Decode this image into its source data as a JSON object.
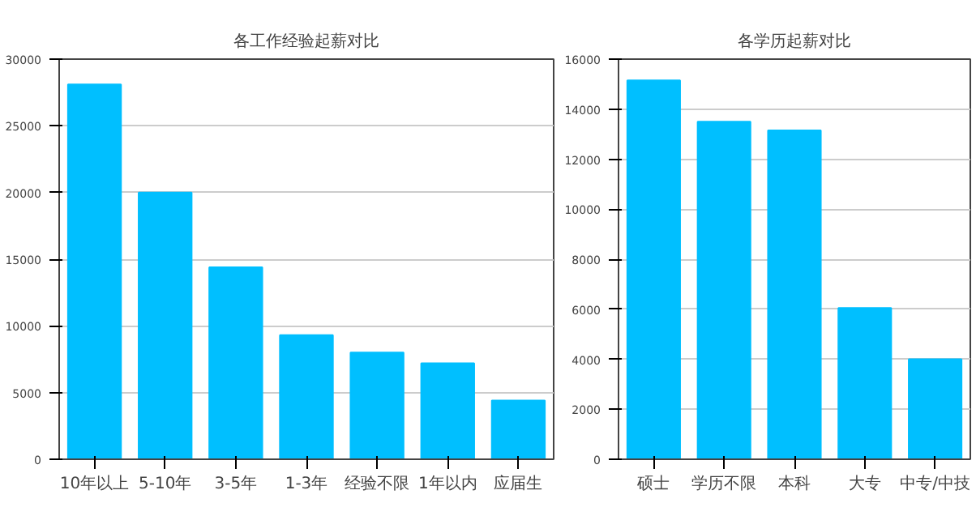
{
  "chart_data": [
    {
      "type": "bar",
      "title": "各工作经验起薪对比",
      "categories": [
        "10年以上",
        "5-10年",
        "3-5年",
        "1-3年",
        "经验不限",
        "1年以内",
        "应届生"
      ],
      "values": [
        28100,
        20000,
        14400,
        9300,
        8000,
        7200,
        4400
      ],
      "color": "#00bfff",
      "ylim": [
        0,
        30000
      ],
      "yticks": [
        0,
        5000,
        10000,
        15000,
        20000,
        25000,
        30000
      ],
      "grid": "y"
    },
    {
      "type": "bar",
      "title": "各学历起薪对比",
      "categories": [
        "硕士",
        "学历不限",
        "本科",
        "大专",
        "中专/中技"
      ],
      "values": [
        15150,
        13500,
        13150,
        6050,
        4000
      ],
      "color": "#00bfff",
      "ylim": [
        0,
        16000
      ],
      "yticks": [
        0,
        2000,
        4000,
        6000,
        8000,
        10000,
        12000,
        14000,
        16000
      ],
      "grid": "y"
    }
  ]
}
